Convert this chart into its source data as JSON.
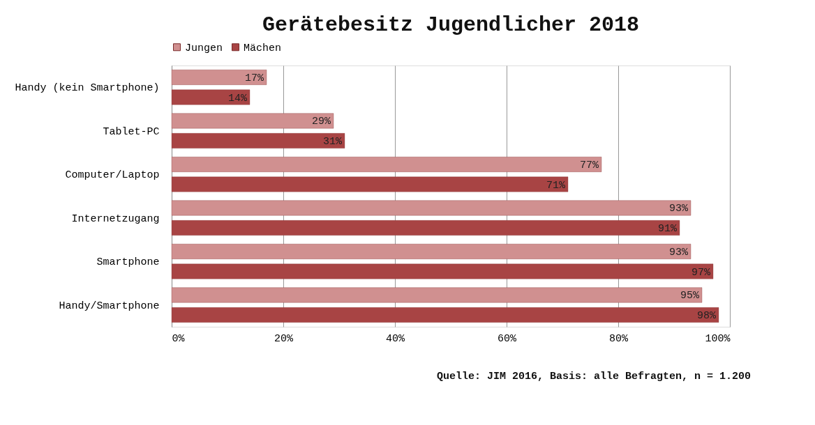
{
  "chart_data": {
    "type": "bar",
    "orientation": "horizontal",
    "title": "Gerätebesitz Jugendlicher 2018",
    "categories": [
      "Handy (kein Smartphone)",
      "Tablet-PC",
      "Computer/Laptop",
      "Internetzugang",
      "Smartphone",
      "Handy/Smartphone"
    ],
    "series": [
      {
        "name": "Jungen",
        "color": "#d09090",
        "values": [
          17,
          29,
          77,
          93,
          93,
          95
        ],
        "value_labels": [
          "17%",
          "29%",
          "77%",
          "93%",
          "93%",
          "95%"
        ]
      },
      {
        "name": "Mächen",
        "color": "#a84444",
        "values": [
          14,
          31,
          71,
          91,
          97,
          98
        ],
        "value_labels": [
          "14%",
          "31%",
          "71%",
          "91%",
          "97%",
          "98%"
        ]
      }
    ],
    "xlim": [
      0,
      100
    ],
    "xticks": [
      {
        "value": 0,
        "label": "0%"
      },
      {
        "value": 20,
        "label": "20%"
      },
      {
        "value": 40,
        "label": "40%"
      },
      {
        "value": 60,
        "label": "60%"
      },
      {
        "value": 80,
        "label": "80%"
      },
      {
        "value": 100,
        "label": "100%"
      }
    ],
    "grid": "x",
    "legend": "top",
    "annotations": [
      "Quelle: JIM 2016, Basis: alle Befragten, n = 1.200"
    ]
  }
}
